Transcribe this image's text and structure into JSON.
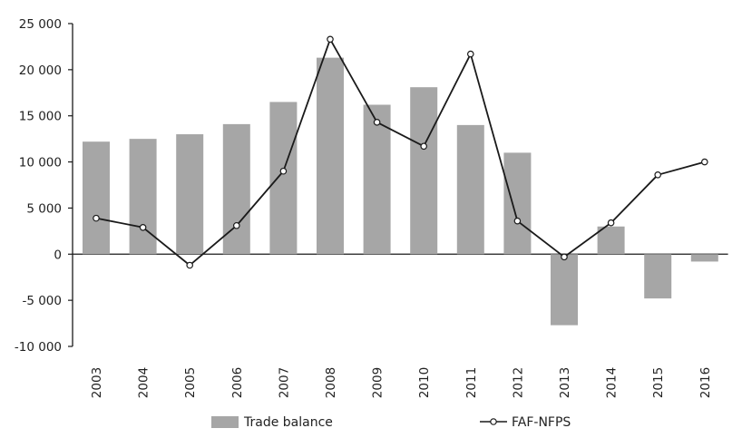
{
  "chart_data": {
    "type": "bar",
    "categories": [
      "2003",
      "2004",
      "2005",
      "2006",
      "2007",
      "2008",
      "2009",
      "2010",
      "2011",
      "2012",
      "2013",
      "2014",
      "2015",
      "2016"
    ],
    "series": [
      {
        "name": "Trade balance",
        "type": "bar",
        "color": "#a6a6a6",
        "values": [
          12200,
          12500,
          13000,
          14100,
          16500,
          21300,
          16200,
          18100,
          14000,
          11000,
          -7700,
          3000,
          -4800,
          -800
        ]
      },
      {
        "name": "FAF-NFPS",
        "type": "line",
        "color": "#1a1a1a",
        "values": [
          3900,
          2900,
          -1200,
          3100,
          9000,
          23300,
          14300,
          11700,
          21700,
          3600,
          -300,
          3400,
          8600,
          10000
        ]
      }
    ],
    "y_ticks": [
      "25 000",
      "20 000",
      "15 000",
      "10 000",
      "5 000",
      "0",
      "-5 000",
      "-10 000"
    ],
    "y_tick_values": [
      25000,
      20000,
      15000,
      10000,
      5000,
      0,
      -5000,
      -10000
    ],
    "ylim": [
      -10000,
      25000
    ],
    "grid": false,
    "legend_position": "bottom"
  }
}
